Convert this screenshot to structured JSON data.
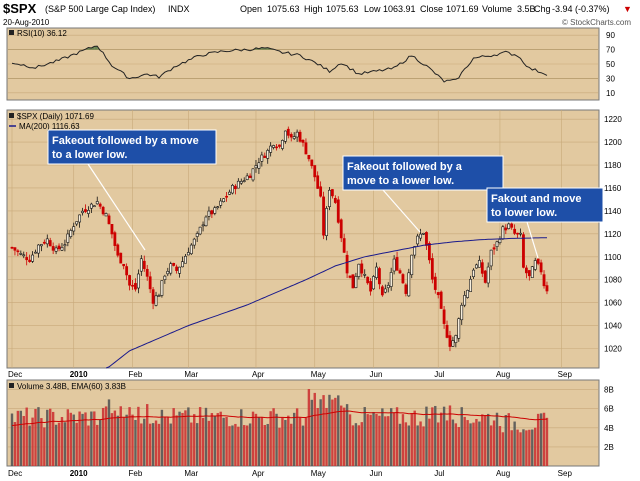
{
  "header": {
    "symbol": "$SPX",
    "name": "(S&P 500 Large Cap Index)",
    "exchange": "INDX",
    "date": "20-Aug-2010",
    "open_label": "Open",
    "open": "1075.63",
    "high_label": "High",
    "high": "1075.63",
    "low_label": "Low",
    "low": "1063.91",
    "close_label": "Close",
    "close": "1071.69",
    "volume_label": "Volume",
    "volume": "3.5B",
    "chg_label": "Chg",
    "chg": "-3.94 (-0.37%)",
    "chg_arrow": "▼",
    "brand": "© StockCharts.com",
    "accent_red": "#cc0000",
    "panel_bg": "#e2c9a0"
  },
  "rsi_panel": {
    "label": "RSI(10) 36.12",
    "ticks": [
      "90",
      "70",
      "50",
      "30",
      "10"
    ],
    "tick_values": [
      90,
      70,
      50,
      30,
      10
    ],
    "overbought": 70,
    "oversold": 30,
    "fill_color": "#557a44"
  },
  "price_panel": {
    "legend_price": "$SPX (Daily) 1071.69",
    "legend_ma": "MA(200) 1116.63",
    "up_color": "#111111",
    "down_color": "#cc0000",
    "ma_color": "#1a1a8c",
    "ticks": [
      "1220",
      "1200",
      "1180",
      "1160",
      "1140",
      "1120",
      "1100",
      "1080",
      "1060",
      "1040",
      "1020"
    ],
    "tick_values": [
      1220,
      1200,
      1180,
      1160,
      1140,
      1120,
      1100,
      1080,
      1060,
      1040,
      1020
    ],
    "ylim": [
      1003,
      1228
    ]
  },
  "volume_panel": {
    "label": "Volume 3.48B, EMA(60) 3.83B",
    "ticks": [
      "8B",
      "6B",
      "4B",
      "2B"
    ],
    "tick_values": [
      8,
      6,
      4,
      2
    ],
    "ylim": [
      0,
      9
    ],
    "bar_color": "#cc3333",
    "ema_color": "#cc0000"
  },
  "x_axis": {
    "months": [
      {
        "label": "Dec",
        "bold": false,
        "day": 0
      },
      {
        "label": "2010",
        "bold": true,
        "day": 21
      },
      {
        "label": "Feb",
        "bold": false,
        "day": 41
      },
      {
        "label": "Mar",
        "bold": false,
        "day": 60
      },
      {
        "label": "Apr",
        "bold": false,
        "day": 83
      },
      {
        "label": "May",
        "bold": false,
        "day": 103
      },
      {
        "label": "Jun",
        "bold": false,
        "day": 123
      },
      {
        "label": "Jul",
        "bold": false,
        "day": 145
      },
      {
        "label": "Aug",
        "bold": false,
        "day": 166
      },
      {
        "label": "Sep",
        "bold": false,
        "day": 187
      }
    ],
    "total_days": 198
  },
  "annotations": [
    {
      "id": "ann-1",
      "lines": [
        "Fakeout followed by a move",
        "to a lower low."
      ],
      "day": 44
    },
    {
      "id": "ann-2",
      "lines": [
        "Fakeout followed by a",
        "move to a lower low."
      ],
      "day": 138
    },
    {
      "id": "ann-3",
      "lines": [
        "Fakout and move",
        "to lower low."
      ],
      "day": 180
    }
  ],
  "chart_data": {
    "type": "candlestick",
    "title": "$SPX (S&P 500 Large Cap Index) INDX",
    "x": "trading days, Dec 2009 – Aug 20 2010",
    "close_anchors": [
      [
        0,
        1108
      ],
      [
        3,
        1102
      ],
      [
        6,
        1098
      ],
      [
        9,
        1110
      ],
      [
        12,
        1115
      ],
      [
        15,
        1105
      ],
      [
        18,
        1112
      ],
      [
        21,
        1128
      ],
      [
        24,
        1140
      ],
      [
        27,
        1145
      ],
      [
        29,
        1148
      ],
      [
        32,
        1136
      ],
      [
        34,
        1120
      ],
      [
        36,
        1100
      ],
      [
        38,
        1094
      ],
      [
        40,
        1075
      ],
      [
        42,
        1072
      ],
      [
        44,
        1098
      ],
      [
        46,
        1082
      ],
      [
        48,
        1062
      ],
      [
        50,
        1068
      ],
      [
        52,
        1085
      ],
      [
        54,
        1092
      ],
      [
        56,
        1088
      ],
      [
        58,
        1096
      ],
      [
        60,
        1106
      ],
      [
        63,
        1118
      ],
      [
        66,
        1136
      ],
      [
        69,
        1140
      ],
      [
        72,
        1150
      ],
      [
        75,
        1160
      ],
      [
        78,
        1166
      ],
      [
        81,
        1172
      ],
      [
        84,
        1184
      ],
      [
        87,
        1192
      ],
      [
        89,
        1200
      ],
      [
        91,
        1196
      ],
      [
        93,
        1212
      ],
      [
        95,
        1202
      ],
      [
        97,
        1208
      ],
      [
        99,
        1198
      ],
      [
        101,
        1186
      ],
      [
        103,
        1170
      ],
      [
        105,
        1150
      ],
      [
        106,
        1120
      ],
      [
        108,
        1160
      ],
      [
        110,
        1148
      ],
      [
        112,
        1118
      ],
      [
        114,
        1088
      ],
      [
        116,
        1074
      ],
      [
        118,
        1095
      ],
      [
        120,
        1082
      ],
      [
        122,
        1070
      ],
      [
        124,
        1090
      ],
      [
        126,
        1064
      ],
      [
        128,
        1076
      ],
      [
        130,
        1096
      ],
      [
        132,
        1086
      ],
      [
        134,
        1070
      ],
      [
        136,
        1104
      ],
      [
        138,
        1116
      ],
      [
        140,
        1122
      ],
      [
        142,
        1096
      ],
      [
        143,
        1080
      ],
      [
        145,
        1064
      ],
      [
        147,
        1040
      ],
      [
        149,
        1024
      ],
      [
        151,
        1030
      ],
      [
        153,
        1060
      ],
      [
        155,
        1072
      ],
      [
        157,
        1090
      ],
      [
        159,
        1094
      ],
      [
        161,
        1078
      ],
      [
        163,
        1104
      ],
      [
        165,
        1112
      ],
      [
        167,
        1124
      ],
      [
        169,
        1127
      ],
      [
        171,
        1120
      ],
      [
        173,
        1118
      ],
      [
        174,
        1090
      ],
      [
        176,
        1082
      ],
      [
        178,
        1095
      ],
      [
        180,
        1088
      ],
      [
        181,
        1076
      ],
      [
        182,
        1071.69
      ]
    ],
    "ma200_anchors": [
      [
        32,
        1002
      ],
      [
        40,
        1018
      ],
      [
        60,
        1040
      ],
      [
        80,
        1058
      ],
      [
        100,
        1080
      ],
      [
        110,
        1092
      ],
      [
        120,
        1100
      ],
      [
        130,
        1105
      ],
      [
        140,
        1110
      ],
      [
        150,
        1113
      ],
      [
        160,
        1115
      ],
      [
        170,
        1116
      ],
      [
        182,
        1116.63
      ]
    ],
    "rsi_anchors": [
      [
        0,
        52
      ],
      [
        8,
        45
      ],
      [
        16,
        55
      ],
      [
        24,
        68
      ],
      [
        29,
        76
      ],
      [
        34,
        48
      ],
      [
        40,
        30
      ],
      [
        46,
        36
      ],
      [
        50,
        32
      ],
      [
        56,
        48
      ],
      [
        64,
        62
      ],
      [
        72,
        68
      ],
      [
        80,
        70
      ],
      [
        86,
        72
      ],
      [
        92,
        66
      ],
      [
        98,
        62
      ],
      [
        104,
        50
      ],
      [
        108,
        40
      ],
      [
        112,
        52
      ],
      [
        118,
        36
      ],
      [
        124,
        40
      ],
      [
        130,
        44
      ],
      [
        136,
        62
      ],
      [
        142,
        44
      ],
      [
        147,
        26
      ],
      [
        151,
        27
      ],
      [
        157,
        58
      ],
      [
        163,
        62
      ],
      [
        168,
        66
      ],
      [
        172,
        62
      ],
      [
        176,
        44
      ],
      [
        182,
        36.12
      ]
    ],
    "volume_ema": "3.83B",
    "last_volume": "3.48B"
  }
}
